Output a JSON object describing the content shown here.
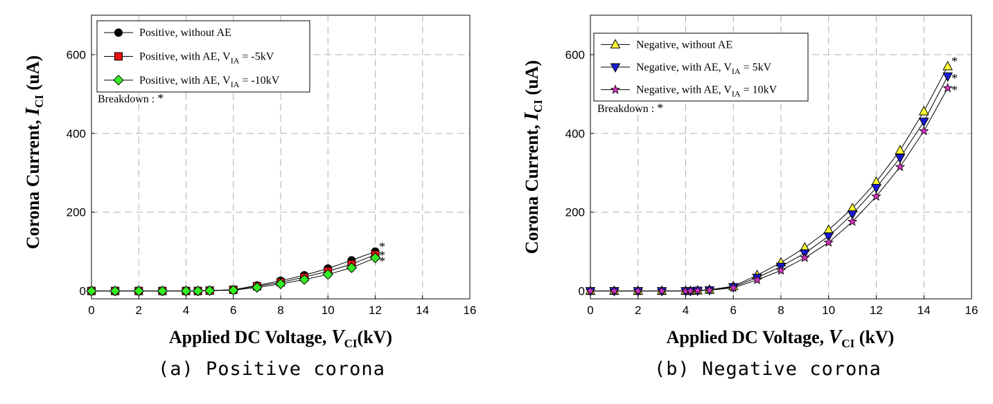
{
  "colors": {
    "black": "#000000",
    "red": "#e81010",
    "green": "#33ee22",
    "yellow": "#ffff33",
    "blue": "#1a1ad6",
    "magenta": "#cc33bb",
    "grid": "#b0b0b0"
  },
  "captions": [
    "(a) Positive corona",
    "(b) Negative corona"
  ],
  "chart_data": [
    {
      "type": "line",
      "xlabel": {
        "main": "Applied DC Voltage, ",
        "var": "V",
        "sub": "CI",
        "tail": "(kV)"
      },
      "ylabel": {
        "main": "Corona Current, ",
        "var": "I",
        "sub": "CI",
        "tail": " (uA)"
      },
      "xlim": [
        0,
        16
      ],
      "ylim": [
        -20,
        700
      ],
      "xticks": [
        0,
        2,
        4,
        6,
        8,
        10,
        12,
        14,
        16
      ],
      "yticks": [
        0,
        200,
        400,
        600
      ],
      "grid": true,
      "legend_position": "top-left",
      "annotation": {
        "text": "Breakdown : ",
        "star": "*"
      },
      "series": [
        {
          "name": "Positive,  without AE",
          "name_parts": {
            "main": "Positive,  without AE",
            "sub": "",
            "tail": ""
          },
          "marker": "circle",
          "color": "#000000",
          "x": [
            0,
            1,
            2,
            3,
            4,
            4.5,
            5,
            6,
            7,
            8,
            9,
            10,
            11,
            12
          ],
          "y": [
            0,
            0,
            0,
            0,
            0,
            0,
            1,
            3,
            14,
            26,
            40,
            57,
            78,
            100
          ],
          "breakdown_y": 120
        },
        {
          "name": "Positive,  with AE, VIA = -5kV",
          "name_parts": {
            "main": "Positive,  with AE, V",
            "sub": "IA",
            "tail": " = -5kV"
          },
          "marker": "square",
          "color": "#e81010",
          "x": [
            0,
            1,
            2,
            3,
            4,
            4.5,
            5,
            6,
            7,
            8,
            9,
            10,
            11,
            12
          ],
          "y": [
            0,
            0,
            0,
            0,
            0,
            0,
            1,
            3,
            12,
            22,
            35,
            50,
            68,
            92
          ],
          "breakdown_y": 98
        },
        {
          "name": "Positive,  with AE, VIA = -10kV",
          "name_parts": {
            "main": "Positive,  with AE, V",
            "sub": "IA",
            "tail": " = -10kV"
          },
          "marker": "diamond",
          "color": "#33ee22",
          "x": [
            0,
            1,
            2,
            3,
            4,
            4.5,
            5,
            6,
            7,
            8,
            9,
            10,
            11,
            12
          ],
          "y": [
            0,
            0,
            0,
            0,
            0,
            0,
            1,
            2,
            9,
            18,
            29,
            42,
            59,
            84
          ],
          "breakdown_y": 83
        }
      ]
    },
    {
      "type": "line",
      "xlabel": {
        "main": "Applied DC Voltage, ",
        "var": "V",
        "sub": "CI",
        "tail": " (kV)"
      },
      "ylabel": {
        "main": "Corona Current, ",
        "var": "I",
        "sub": "CI",
        "tail": " (uA)"
      },
      "xlim": [
        0,
        16
      ],
      "ylim": [
        -20,
        700
      ],
      "xticks": [
        0,
        2,
        4,
        6,
        8,
        10,
        12,
        14,
        16
      ],
      "yticks": [
        0,
        200,
        400,
        600
      ],
      "grid": true,
      "legend_position": "top-left",
      "annotation": {
        "text": "Breakdown : ",
        "star": "*"
      },
      "series": [
        {
          "name": "Negative, without AE",
          "name_parts": {
            "main": "Negative, without AE",
            "sub": "",
            "tail": ""
          },
          "marker": "triangle-up",
          "color": "#ffff33",
          "x": [
            0,
            1,
            2,
            3,
            4,
            4.2,
            4.5,
            5,
            6,
            7,
            8,
            9,
            10,
            11,
            12,
            13,
            14,
            15
          ],
          "y": [
            0,
            0,
            0,
            0,
            0,
            0,
            1,
            3,
            12,
            40,
            72,
            110,
            155,
            210,
            277,
            357,
            456,
            570
          ],
          "breakdown_y": 590
        },
        {
          "name": "Negative, with AE, VIA = 5kV",
          "name_parts": {
            "main": "Negative, with AE, V",
            "sub": "IA",
            "tail": " = 5kV"
          },
          "marker": "triangle-down",
          "color": "#1a1ad6",
          "x": [
            0,
            1,
            2,
            3,
            4,
            4.2,
            4.5,
            5,
            6,
            7,
            8,
            9,
            10,
            11,
            12,
            13,
            14,
            15
          ],
          "y": [
            0,
            0,
            0,
            0,
            0,
            0,
            1,
            2,
            10,
            34,
            62,
            96,
            139,
            195,
            262,
            338,
            430,
            545
          ],
          "breakdown_y": 547
        },
        {
          "name": "Negative, with AE, VIA = 10kV",
          "name_parts": {
            "main": "Negative, with AE, V",
            "sub": "IA",
            "tail": " = 10kV"
          },
          "marker": "star",
          "color": "#cc33bb",
          "x": [
            0,
            1,
            2,
            3,
            4,
            4.2,
            4.5,
            5,
            6,
            7,
            8,
            9,
            10,
            11,
            12,
            13,
            14,
            15
          ],
          "y": [
            0,
            0,
            0,
            0,
            0,
            0,
            1,
            2,
            8,
            28,
            52,
            84,
            123,
            176,
            240,
            315,
            406,
            515
          ],
          "breakdown_y": 517
        }
      ]
    }
  ]
}
